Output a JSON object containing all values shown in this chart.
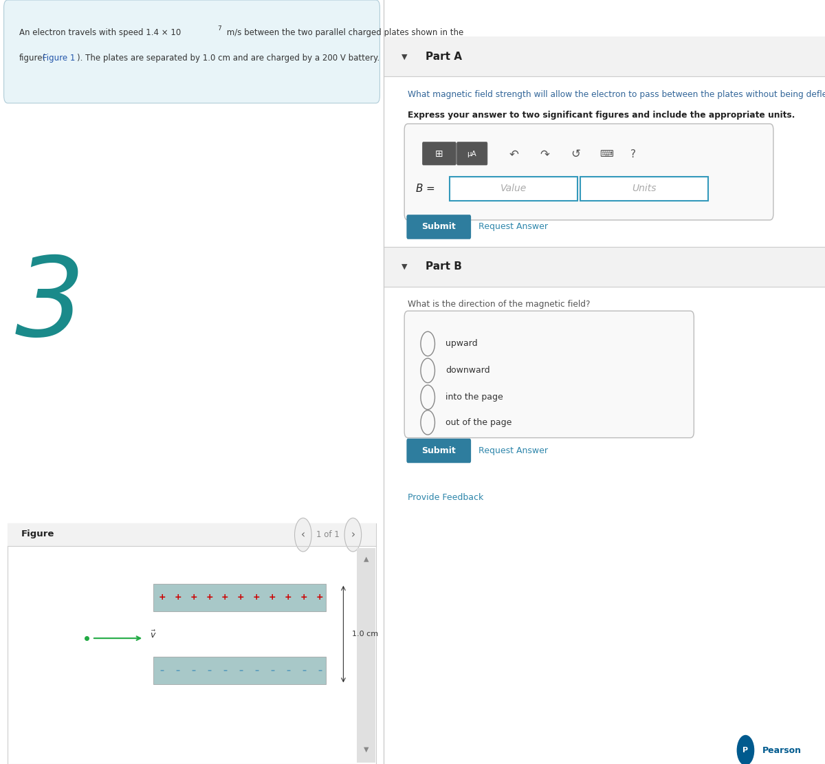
{
  "bg_color": "#ffffff",
  "left_panel_bg": "#e8f4f8",
  "part_a_label": "Part A",
  "part_a_question": "What magnetic field strength will allow the electron to pass between the plates without being deflected?",
  "part_a_bold": "Express your answer to two significant figures and include the appropriate units.",
  "value_placeholder": "Value",
  "units_placeholder": "Units",
  "submit_color": "#2e7d9e",
  "submit_text": "Submit",
  "request_answer_text": "Request Answer",
  "part_b_label": "Part B",
  "part_b_question": "What is the direction of the magnetic field?",
  "radio_options": [
    "upward",
    "downward",
    "into the page",
    "out of the page"
  ],
  "figure_label": "Figure",
  "figure_nav": "1 of 1",
  "plate_color": "#a8c8c8",
  "plus_color": "#cc0000",
  "minus_color": "#5599bb",
  "arrow_color": "#22aa44",
  "dimension_color": "#333333",
  "provide_feedback_text": "Provide Feedback",
  "pearson_color": "#005a8e",
  "number_3_color": "#1a8a8a",
  "panel_separator_color": "#cccccc"
}
